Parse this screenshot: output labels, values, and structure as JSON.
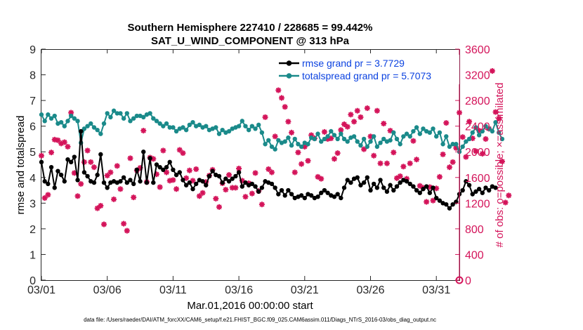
{
  "chart_data": {
    "type": "line",
    "title": "Southern Hemisphere 227410 / 228685 = 99.442%",
    "subtitle": "SAT_U_WIND_COMPONENT @ 313 hPa",
    "xlabel": "Mar.01,2016 00:00:00 start",
    "ylabel_left": "rmse and totalspread",
    "ylabel_right": "# of obs: o=possible; ×=assimilated",
    "footer": "data file: /Users/raeder/DAI/ATM_forcXX/CAM6_setup/f.e21.FHIST_BGC.f09_025.CAM6assim.011/Diags_NTrS_2016-03/obs_diag_output.nc",
    "x_ticks": [
      "03/01",
      "03/06",
      "03/11",
      "03/16",
      "03/21",
      "03/26",
      "03/31"
    ],
    "x_tick_days": [
      0,
      5,
      10,
      15,
      20,
      25,
      30
    ],
    "xlim_days": [
      0,
      31.75
    ],
    "ylim_left": [
      0,
      9
    ],
    "yticks_left": [
      "0",
      "1",
      "2",
      "3",
      "4",
      "5",
      "6",
      "7",
      "8",
      "9"
    ],
    "ylim_right": [
      0,
      3600
    ],
    "yticks_right": [
      "0",
      "400",
      "800",
      "1200",
      "1600",
      "2000",
      "2400",
      "2800",
      "3200",
      "3600"
    ],
    "legend_position": "top-right",
    "colors": {
      "rmse": "#000000",
      "spread": "#1a8a8a",
      "obs": "#d4145a",
      "legend_text": "#0b42e0",
      "axis_right": "#d4145a"
    },
    "series": [
      {
        "name": "rmse grand pr = 3.7729",
        "axis": "left",
        "values": [
          4.6,
          3.85,
          3.75,
          4.4,
          3.6,
          4.25,
          4.1,
          3.85,
          4.7,
          4.6,
          4.8,
          3.9,
          5.8,
          4.2,
          4.05,
          3.85,
          3.8,
          4.1,
          4.9,
          3.8,
          3.6,
          3.8,
          3.85,
          3.8,
          3.85,
          4.0,
          3.8,
          3.9,
          3.75,
          4.3,
          3.85,
          5.0,
          3.8,
          4.75,
          3.8,
          4.5,
          4.4,
          4.3,
          4.4,
          4.6,
          4.3,
          4.1,
          4.2,
          3.9,
          3.7,
          3.8,
          3.55,
          3.75,
          3.9,
          3.85,
          3.7,
          4.05,
          4.25,
          4.1,
          4.05,
          3.8,
          3.95,
          3.85,
          3.95,
          4.05,
          4.2,
          3.65,
          3.8,
          3.7,
          3.75,
          3.65,
          3.45,
          3.6,
          3.85,
          3.8,
          3.75,
          3.6,
          3.35,
          3.5,
          3.3,
          3.5,
          3.35,
          3.2,
          3.25,
          3.3,
          3.2,
          3.35,
          3.3,
          3.2,
          3.25,
          3.4,
          3.5,
          3.4,
          3.3,
          3.25,
          3.35,
          3.2,
          3.6,
          3.9,
          3.8,
          3.95,
          4.0,
          3.7,
          3.8,
          4.0,
          3.5,
          3.75,
          3.6,
          3.9,
          3.6,
          3.45,
          3.7,
          3.5,
          3.65,
          3.8,
          3.9,
          3.85,
          3.75,
          3.65,
          3.5,
          3.4,
          3.55,
          3.65,
          3.4,
          3.6,
          3.2,
          3.1,
          3.0,
          2.95,
          2.8,
          2.95,
          3.05,
          3.35,
          3.5,
          3.85,
          3.7,
          3.35,
          3.45,
          3.55,
          3.4,
          3.6,
          3.5,
          3.65,
          3.6
        ]
      },
      {
        "name": "totalspread grand pr = 5.7073",
        "axis": "left",
        "values": [
          6.45,
          6.2,
          6.45,
          6.3,
          6.4,
          6.1,
          6.15,
          6.0,
          6.2,
          6.4,
          6.3,
          6.2,
          5.35,
          5.9,
          6.0,
          6.1,
          5.95,
          5.85,
          5.7,
          6.1,
          6.5,
          6.35,
          6.6,
          6.5,
          6.5,
          6.3,
          6.5,
          6.2,
          6.3,
          6.4,
          6.4,
          6.35,
          6.45,
          6.5,
          6.3,
          6.2,
          6.1,
          6.0,
          6.1,
          5.95,
          5.95,
          5.8,
          5.9,
          5.95,
          5.85,
          6.05,
          6.15,
          6.0,
          6.05,
          5.95,
          6.0,
          5.85,
          5.9,
          5.95,
          5.7,
          5.85,
          5.75,
          5.8,
          5.9,
          5.95,
          6.0,
          6.2,
          6.0,
          5.85,
          6.0,
          5.9,
          6.05,
          5.75,
          5.3,
          5.45,
          5.2,
          5.1,
          5.45,
          5.35,
          5.4,
          5.55,
          5.25,
          5.5,
          5.3,
          5.2,
          5.35,
          5.3,
          5.55,
          5.5,
          5.7,
          5.4,
          5.5,
          5.6,
          5.8,
          5.65,
          5.5,
          5.7,
          5.5,
          5.4,
          5.55,
          5.6,
          5.4,
          5.25,
          5.5,
          5.2,
          5.4,
          5.6,
          5.2,
          5.35,
          5.5,
          5.4,
          5.45,
          5.75,
          5.5,
          5.3,
          5.6,
          5.7,
          5.6,
          5.8,
          5.95,
          5.7,
          5.9,
          5.8,
          5.75,
          5.9,
          5.6,
          5.75,
          5.3,
          5.6,
          5.2,
          5.3,
          5.3,
          5.0,
          5.2,
          5.4,
          5.5,
          5.75,
          5.95,
          5.65,
          5.8,
          6.0,
          5.9,
          5.8,
          6.15,
          5.75,
          5.5
        ]
      },
      {
        "name": "# of obs assimilated",
        "axis": "right",
        "values": [
          1940,
          1280,
          1330,
          1990,
          2190,
          2180,
          2130,
          2150,
          2080,
          2610,
          1670,
          1310,
          1500,
          1840,
          2020,
          1840,
          1760,
          1120,
          1160,
          870,
          1630,
          1680,
          1260,
          1780,
          1420,
          880,
          770,
          1900,
          1290,
          1710,
          1750,
          2330,
          1530,
          1910,
          1890,
          1650,
          1450,
          2020,
          1680,
          1550,
          1560,
          1420,
          2030,
          1980,
          1590,
          1710,
          1550,
          1730,
          1310,
          1360,
          1530,
          1630,
          1720,
          1270,
          1140,
          1510,
          1410,
          1640,
          1440,
          1440,
          1740,
          1550,
          1300,
          1510,
          1350,
          1670,
          1390,
          1180,
          2540,
          1730,
          1680,
          2240,
          2960,
          2840,
          2700,
          2470,
          2300,
          1680,
          1990,
          1810,
          2080,
          1860,
          2260,
          2210,
          1610,
          1580,
          2310,
          2200,
          2210,
          1890,
          1980,
          2340,
          2430,
          2390,
          2580,
          2470,
          2640,
          2540,
          2040,
          2680,
          2240,
          1940,
          2640,
          1820,
          2440,
          1820,
          2330,
          1990,
          1590,
          1620,
          1770,
          1580,
          1820,
          2170,
          1880,
          1470,
          1440,
          1220,
          1450,
          1240,
          1430,
          1610,
          1960,
          2450,
          1760,
          1840,
          2060,
          2610,
          2230,
          1920,
          2470,
          2210,
          2010,
          2330,
          1970,
          2200,
          2360,
          3260,
          2620,
          2520,
          1850,
          1210,
          1320
        ]
      }
    ]
  }
}
